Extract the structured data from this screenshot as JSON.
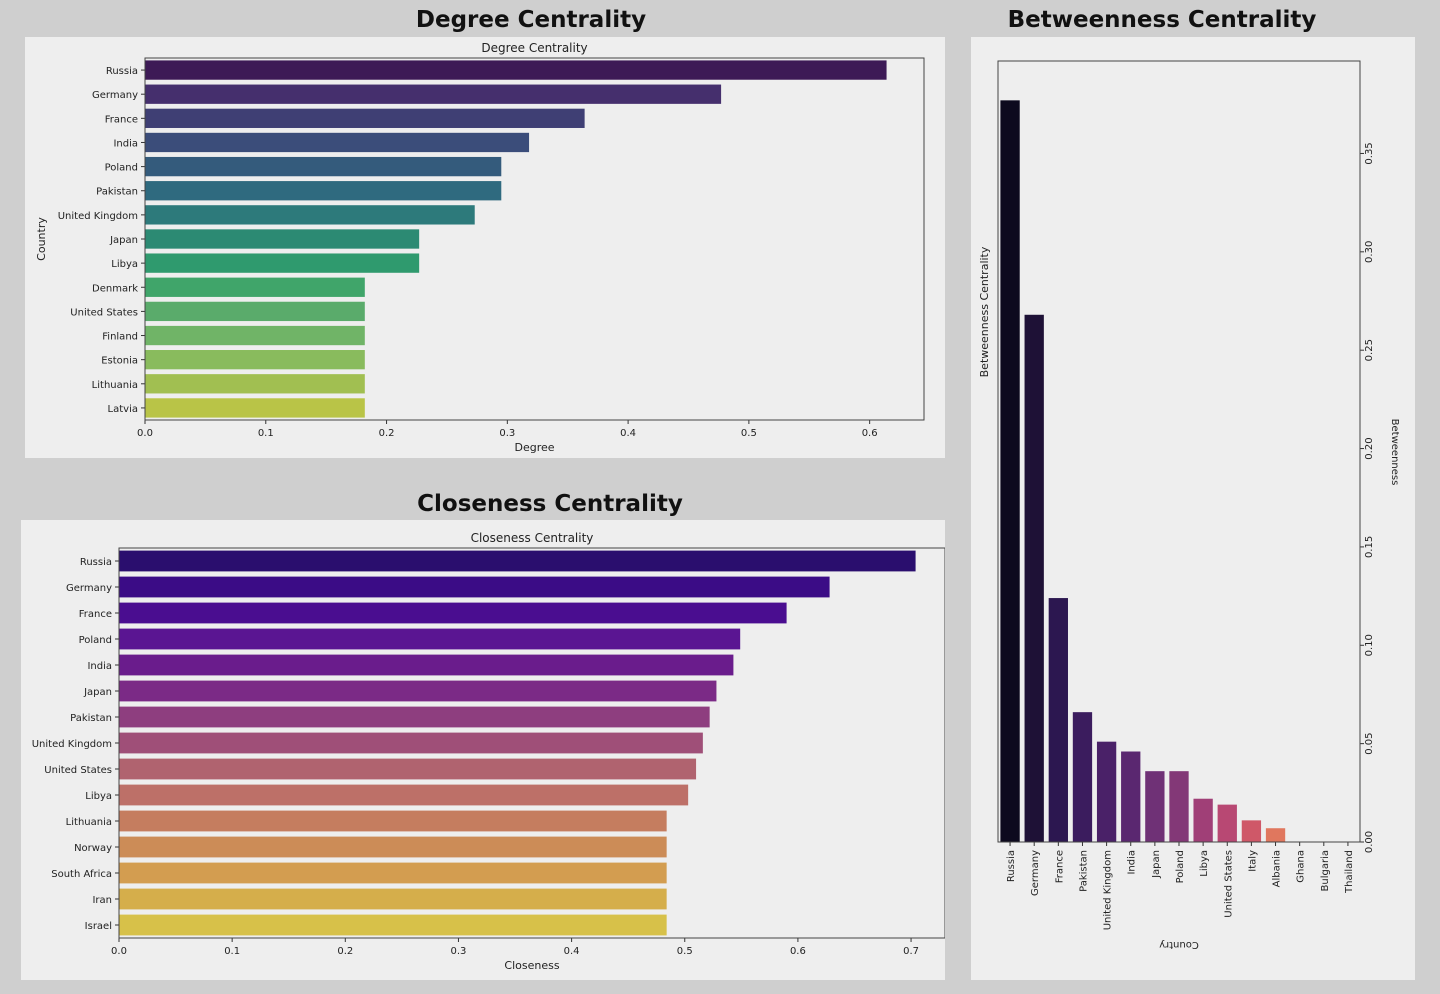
{
  "headings": {
    "degree": "Degree Centrality",
    "betweenness": "Betweenness Centrality",
    "closeness": "Closeness Centrality"
  },
  "chart_data": [
    {
      "type": "bar",
      "orientation": "horizontal",
      "title": "Degree Centrality",
      "xlabel": "Degree",
      "ylabel": "Country",
      "categories": [
        "Russia",
        "Germany",
        "France",
        "India",
        "Poland",
        "Pakistan",
        "United Kingdom",
        "Japan",
        "Libya",
        "Denmark",
        "United States",
        "Finland",
        "Estonia",
        "Lithuania",
        "Latvia"
      ],
      "values": [
        0.614,
        0.477,
        0.364,
        0.318,
        0.295,
        0.295,
        0.273,
        0.227,
        0.227,
        0.182,
        0.182,
        0.182,
        0.182,
        0.182,
        0.182
      ],
      "xlim": [
        0,
        0.645
      ],
      "xticks": [
        "0.0",
        "0.1",
        "0.2",
        "0.3",
        "0.4",
        "0.5",
        "0.6"
      ],
      "palette": "viridis",
      "colors": [
        "#3d1a56",
        "#452f6d",
        "#3f3f74",
        "#3b4d7a",
        "#345b7c",
        "#2f6a7f",
        "#2d7a7b",
        "#2c8a73",
        "#2f9a6e",
        "#40a56a",
        "#5aab6b",
        "#70b467",
        "#89bb5d",
        "#a1bf51",
        "#b9c447"
      ],
      "grid": false
    },
    {
      "type": "bar",
      "orientation": "vertical",
      "title": "",
      "xlabel": "Country",
      "ylabel": "Betweenness Centrality",
      "ylabel_right": "Betweenness",
      "categories": [
        "Russia",
        "Germany",
        "France",
        "Pakistan",
        "United Kingdom",
        "India",
        "Japan",
        "Poland",
        "Libya",
        "United States",
        "Italy",
        "Albania",
        "Ghana",
        "Bulgaria",
        "Thailand"
      ],
      "values": [
        0.377,
        0.268,
        0.124,
        0.066,
        0.051,
        0.046,
        0.036,
        0.036,
        0.022,
        0.019,
        0.011,
        0.007,
        0,
        0,
        0
      ],
      "ylim": [
        0,
        0.397
      ],
      "yticks": [
        "0.00",
        "0.05",
        "0.10",
        "0.15",
        "0.20",
        "0.25",
        "0.30",
        "0.35"
      ],
      "palette": "magma",
      "colors": [
        "#0d0a1e",
        "#1e1136",
        "#2c1750",
        "#3b1c5e",
        "#4a2168",
        "#5a2770",
        "#6f3176",
        "#833877",
        "#a03f77",
        "#b84873",
        "#cf5868",
        "#e0775e",
        "#ee9668",
        "#f4b47a",
        "#f6d28f"
      ],
      "grid": false
    },
    {
      "type": "bar",
      "orientation": "horizontal",
      "title": "Closeness Centrality",
      "xlabel": "Closeness",
      "ylabel": "",
      "categories": [
        "Russia",
        "Germany",
        "France",
        "Poland",
        "India",
        "Japan",
        "Pakistan",
        "United Kingdom",
        "United States",
        "Libya",
        "Lithuania",
        "Norway",
        "South Africa",
        "Iran",
        "Israel"
      ],
      "values": [
        0.704,
        0.628,
        0.59,
        0.549,
        0.543,
        0.528,
        0.522,
        0.516,
        0.51,
        0.503,
        0.484,
        0.484,
        0.484,
        0.484,
        0.484
      ],
      "xlim": [
        0,
        0.73
      ],
      "xticks": [
        "0.0",
        "0.1",
        "0.2",
        "0.3",
        "0.4",
        "0.5",
        "0.6",
        "0.7"
      ],
      "palette": "plasma",
      "colors": [
        "#2a0e6e",
        "#3b0c86",
        "#4a0d90",
        "#5a1592",
        "#6a1c8c",
        "#7b2a86",
        "#8e3e7f",
        "#9f4f78",
        "#b0636f",
        "#bd7068",
        "#c57d5f",
        "#cc8c57",
        "#d39d50",
        "#d5ae4b",
        "#d7c149"
      ],
      "grid": false
    }
  ]
}
